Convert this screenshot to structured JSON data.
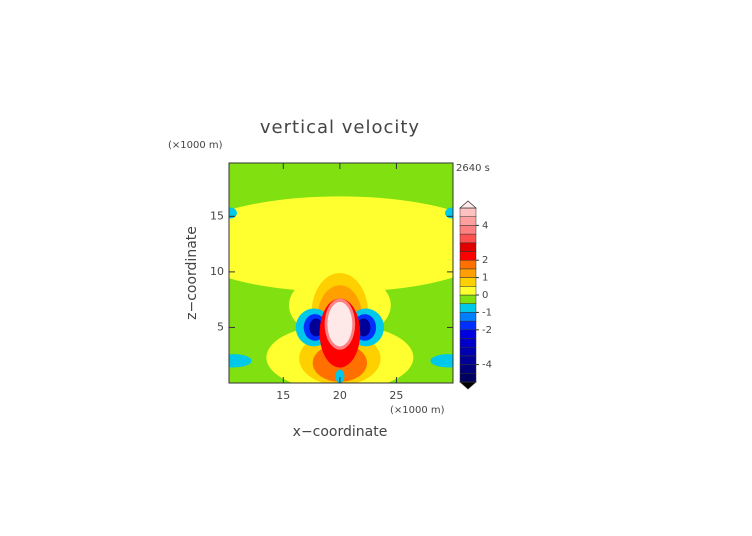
{
  "chart_data": {
    "type": "contour",
    "title": "vertical velocity",
    "xlabel": "x−coordinate",
    "ylabel": "z−coordinate",
    "x_unit": "(×1000 m)",
    "y_unit": "(×1000 m)",
    "time_label": "2640 s",
    "xlim": [
      10.2,
      30
    ],
    "xticks": [
      15,
      20,
      25
    ],
    "ylim": [
      0,
      19.8
    ],
    "yticks": [
      5,
      10,
      15
    ],
    "background_value": -0.25,
    "field": [
      {
        "x": 20,
        "z": 12.5,
        "rx": 14,
        "rz": 4.3,
        "value": 0.25
      },
      {
        "x": 20,
        "z": 7,
        "rx": 4.5,
        "rz": 3,
        "value": 0.25
      },
      {
        "x": 20,
        "z": 2.3,
        "rx": 6.5,
        "rz": 3,
        "value": 0.25
      },
      {
        "x": 20,
        "z": 2.2,
        "rx": 3.6,
        "rz": 2.4,
        "value": 0.75
      },
      {
        "x": 20,
        "z": 6.3,
        "rx": 2.5,
        "rz": 3.6,
        "value": 0.75
      },
      {
        "x": 20,
        "z": 5.8,
        "rx": 2,
        "rz": 3,
        "value": 1.25
      },
      {
        "x": 17.7,
        "z": 5,
        "rx": 1.6,
        "rz": 1.7,
        "value": -0.75
      },
      {
        "x": 22.3,
        "z": 5,
        "rx": 1.6,
        "rz": 1.7,
        "value": -0.75
      },
      {
        "x": 17.8,
        "z": 5,
        "rx": 1,
        "rz": 1.2,
        "value": -1.75
      },
      {
        "x": 22.2,
        "z": 5,
        "rx": 1,
        "rz": 1.2,
        "value": -1.75
      },
      {
        "x": 17.9,
        "z": 5,
        "rx": 0.6,
        "rz": 0.8,
        "value": -3.75
      },
      {
        "x": 22.1,
        "z": 5,
        "rx": 0.6,
        "rz": 0.8,
        "value": -3.75
      },
      {
        "x": 20,
        "z": 1.8,
        "rx": 2.4,
        "rz": 1.7,
        "value": 1.75
      },
      {
        "x": 20,
        "z": 4.5,
        "rx": 1.8,
        "rz": 3.1,
        "value": 2.25
      },
      {
        "x": 20,
        "z": 5.3,
        "rx": 1.35,
        "rz": 2.3,
        "value": 3.75
      },
      {
        "x": 20,
        "z": 5.3,
        "rx": 1.1,
        "rz": 2,
        "value": 5.25
      },
      {
        "x": 20,
        "z": 0.6,
        "rx": 0.4,
        "rz": 0.6,
        "value": -0.75
      },
      {
        "x": 10.6,
        "z": 2,
        "rx": 1.6,
        "rz": 0.6,
        "value": -0.75
      },
      {
        "x": 29.6,
        "z": 2,
        "rx": 1.6,
        "rz": 0.6,
        "value": -0.75
      },
      {
        "x": 10.3,
        "z": 15.3,
        "rx": 0.6,
        "rz": 0.5,
        "value": -0.75
      },
      {
        "x": 29.9,
        "z": 15.3,
        "rx": 0.6,
        "rz": 0.5,
        "value": -0.75
      }
    ],
    "colorbar": {
      "levels": [
        -5,
        -4.5,
        -4,
        -3.5,
        -3,
        -2.5,
        -2,
        -1.5,
        -1,
        -0.5,
        0,
        0.5,
        1,
        1.5,
        2,
        2.5,
        3,
        3.5,
        4,
        4.5,
        5
      ],
      "colors": [
        "#000060",
        "#00007a",
        "#000096",
        "#0000b0",
        "#0000c8",
        "#0000e0",
        "#0030ff",
        "#0080ff",
        "#00c8e8",
        "#80e010",
        "#ffff30",
        "#ffd000",
        "#ffa000",
        "#ff7000",
        "#ff0000",
        "#e00000",
        "#ff5050",
        "#ff8080",
        "#ffa0a0",
        "#ffc0c0"
      ],
      "under_color": "#000000",
      "over_color": "#ffe8e8",
      "ticks": [
        -4,
        -2,
        -1,
        0,
        1,
        2,
        4
      ]
    }
  }
}
